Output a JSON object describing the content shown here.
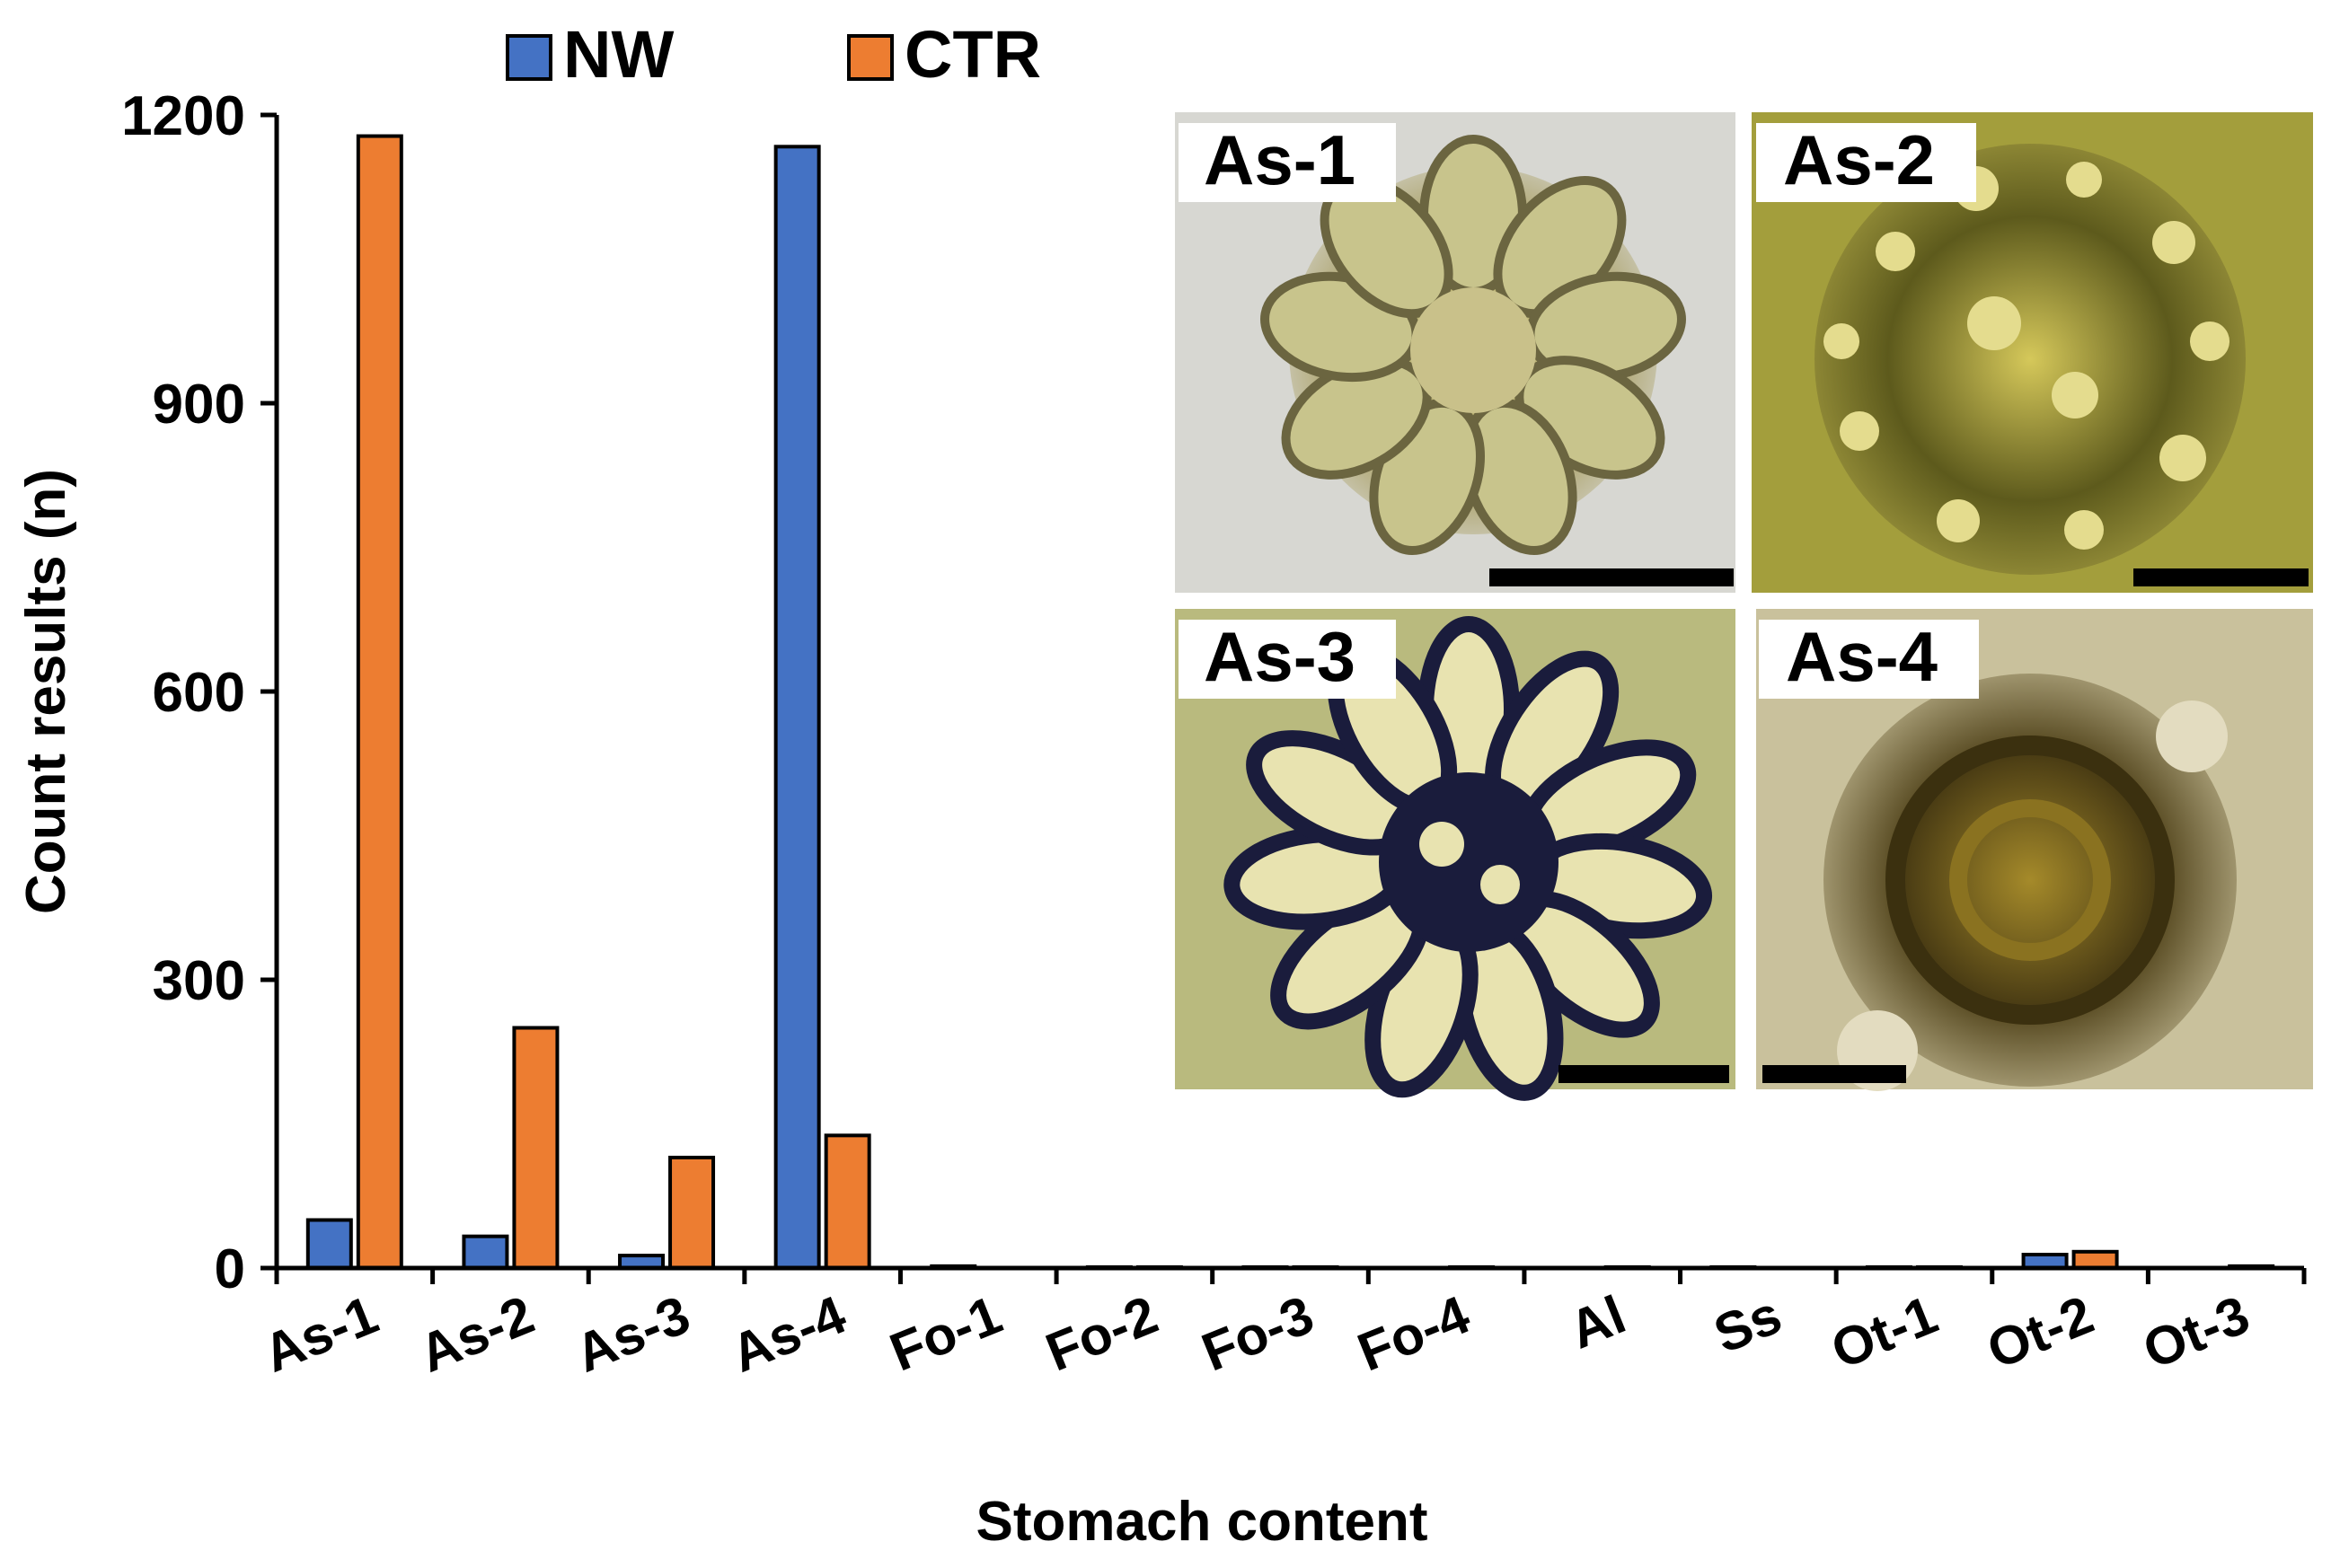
{
  "chart_data": {
    "type": "bar",
    "xlabel": "Stomach content",
    "ylabel": "Count results (n)",
    "ylim": [
      0,
      1200
    ],
    "yticks": [
      0,
      300,
      600,
      900,
      1200
    ],
    "legend_position": "top",
    "categories": [
      "As-1",
      "As-2",
      "As-3",
      "As-4",
      "Fo-1",
      "Fo-2",
      "Fo-3",
      "Fo-4",
      "Al",
      "Ss",
      "Ot-1",
      "Ot-2",
      "Ot-3"
    ],
    "series": [
      {
        "name": "NW",
        "color": "#4472C4",
        "values": [
          50,
          33,
          13,
          1167,
          2,
          1,
          1,
          0,
          0,
          1,
          1,
          14,
          0
        ]
      },
      {
        "name": "CTR",
        "color": "#ED7D31",
        "values": [
          1178,
          250,
          115,
          138,
          0,
          1,
          1,
          1,
          1,
          0,
          1,
          17,
          2
        ]
      }
    ]
  },
  "insets": [
    {
      "label": "As-1"
    },
    {
      "label": "As-2"
    },
    {
      "label": "As-3"
    },
    {
      "label": "As-4"
    }
  ]
}
